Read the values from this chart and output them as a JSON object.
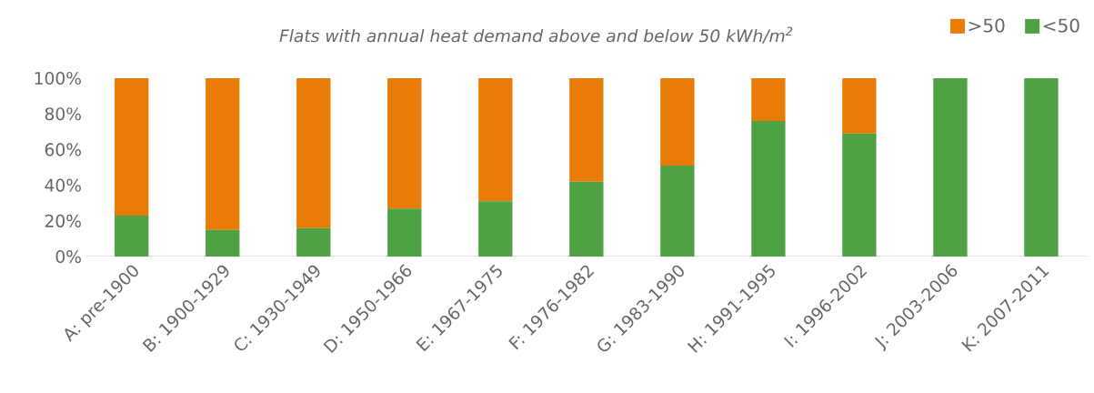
{
  "chart_data": {
    "type": "bar",
    "title": "*Flats with annual heat demand above and below 50 kWh/m$^{2}$*",
    "stacked": true,
    "categories": [
      "A: pre-1900",
      "B: 1900-1929",
      "C: 1930-1949",
      "D: 1950-1966",
      "E: 1967-1975",
      "F: 1976-1982",
      "G: 1983-1990",
      "H: 1991-1995",
      "I: 1996-2002",
      "J: 2003-2006",
      "K: 2007-2011"
    ],
    "series": [
      {
        "name": "<50",
        "color": "#4ea244",
        "values": [
          23,
          15,
          16,
          27,
          31,
          42,
          51,
          76,
          69,
          100,
          100
        ]
      },
      {
        "name": ">50",
        "color": "#e97c07",
        "values": [
          77,
          85,
          84,
          73,
          69,
          58,
          49,
          24,
          31,
          0,
          0
        ]
      }
    ],
    "ylim": [
      0,
      100
    ],
    "yticks": [
      {
        "value": 0,
        "label": "0%"
      },
      {
        "value": 20,
        "label": "20%"
      },
      {
        "value": 40,
        "label": "40%"
      },
      {
        "value": 60,
        "label": "60%"
      },
      {
        "value": 80,
        "label": "80%"
      },
      {
        "value": 100,
        "label": "100%"
      }
    ],
    "grid": false,
    "legend": "top right"
  }
}
